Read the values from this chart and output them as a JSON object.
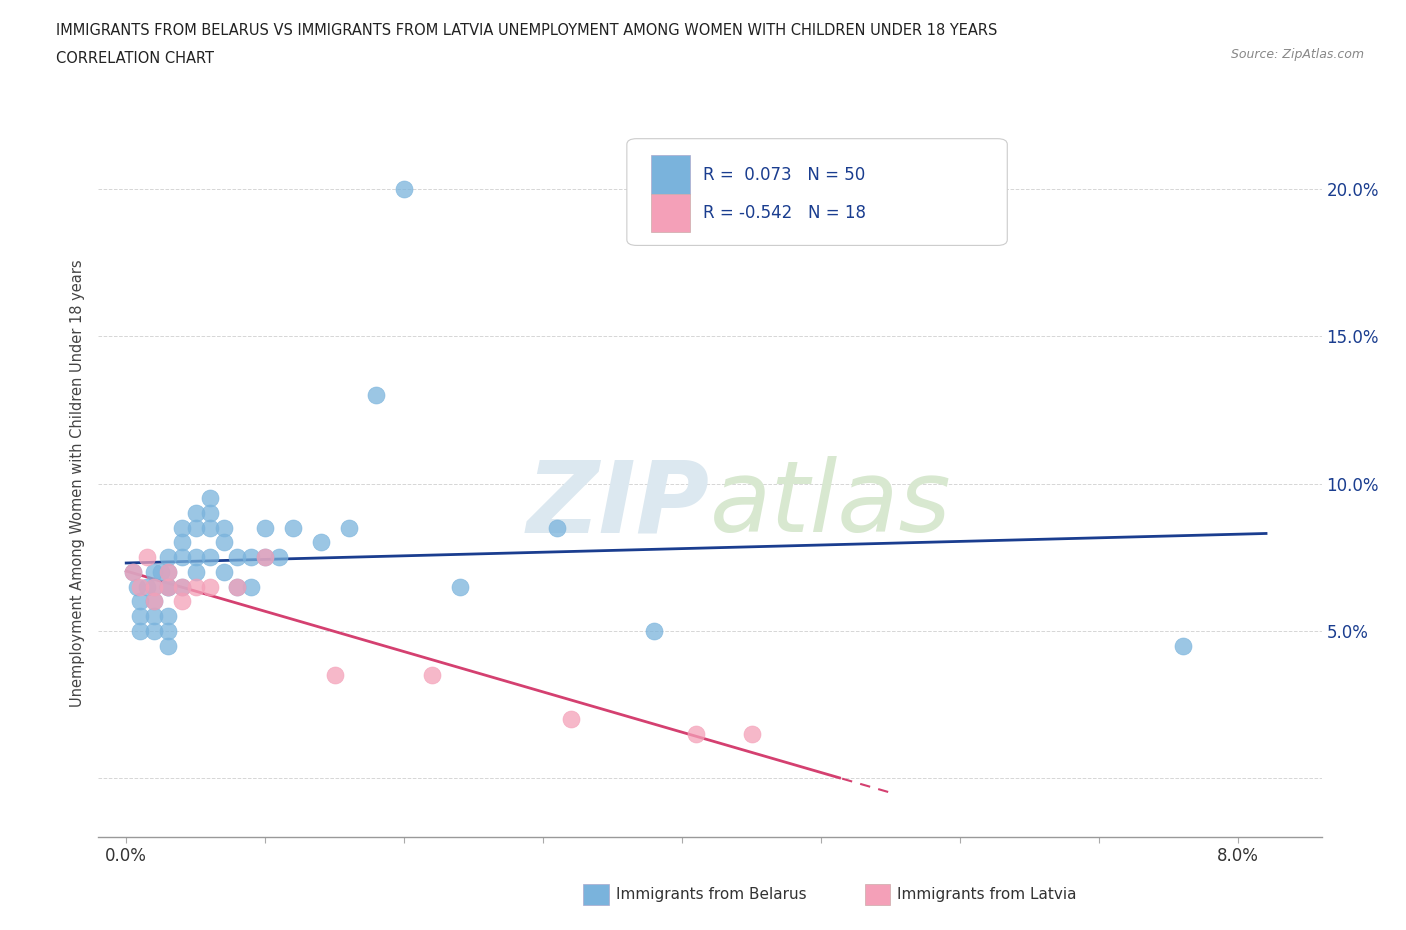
{
  "title_line1": "IMMIGRANTS FROM BELARUS VS IMMIGRANTS FROM LATVIA UNEMPLOYMENT AMONG WOMEN WITH CHILDREN UNDER 18 YEARS",
  "title_line2": "CORRELATION CHART",
  "source": "Source: ZipAtlas.com",
  "bottom_legend_belarus": "Immigrants from Belarus",
  "bottom_legend_latvia": "Immigrants from Latvia",
  "ylabel_label": "Unemployment Among Women with Children Under 18 years",
  "xlim": [
    -0.002,
    0.086
  ],
  "ylim": [
    -0.02,
    0.22
  ],
  "x_ticks": [
    0.0,
    0.01,
    0.02,
    0.03,
    0.04,
    0.05,
    0.06,
    0.07,
    0.08
  ],
  "x_tick_labels": [
    "0.0%",
    "",
    "",
    "",
    "",
    "",
    "",
    "",
    "8.0%"
  ],
  "y_ticks": [
    0.0,
    0.05,
    0.1,
    0.15,
    0.2
  ],
  "y_tick_labels": [
    "",
    "5.0%",
    "10.0%",
    "15.0%",
    "20.0%"
  ],
  "R_belarus": 0.073,
  "N_belarus": 50,
  "R_latvia": -0.542,
  "N_latvia": 18,
  "color_belarus": "#7ab3dc",
  "color_latvia": "#f4a0b8",
  "trend_color_belarus": "#1a3d8f",
  "trend_color_latvia": "#d44070",
  "legend_text_color": "#1a3d8f",
  "grid_color": "#cccccc",
  "belarus_x": [
    0.0005,
    0.0008,
    0.001,
    0.001,
    0.001,
    0.0015,
    0.002,
    0.002,
    0.002,
    0.002,
    0.002,
    0.0025,
    0.003,
    0.003,
    0.003,
    0.003,
    0.003,
    0.003,
    0.003,
    0.004,
    0.004,
    0.004,
    0.004,
    0.005,
    0.005,
    0.005,
    0.005,
    0.006,
    0.006,
    0.006,
    0.006,
    0.007,
    0.007,
    0.007,
    0.008,
    0.008,
    0.009,
    0.009,
    0.01,
    0.01,
    0.011,
    0.012,
    0.014,
    0.016,
    0.018,
    0.02,
    0.024,
    0.031,
    0.038,
    0.076
  ],
  "belarus_y": [
    0.07,
    0.065,
    0.055,
    0.06,
    0.05,
    0.065,
    0.07,
    0.065,
    0.06,
    0.055,
    0.05,
    0.07,
    0.065,
    0.07,
    0.075,
    0.065,
    0.055,
    0.05,
    0.045,
    0.085,
    0.08,
    0.075,
    0.065,
    0.09,
    0.085,
    0.075,
    0.07,
    0.095,
    0.09,
    0.085,
    0.075,
    0.085,
    0.08,
    0.07,
    0.075,
    0.065,
    0.075,
    0.065,
    0.085,
    0.075,
    0.075,
    0.085,
    0.08,
    0.085,
    0.13,
    0.2,
    0.065,
    0.085,
    0.05,
    0.045
  ],
  "latvia_x": [
    0.0005,
    0.001,
    0.0015,
    0.002,
    0.002,
    0.003,
    0.003,
    0.004,
    0.004,
    0.005,
    0.006,
    0.008,
    0.01,
    0.015,
    0.022,
    0.032,
    0.041,
    0.045
  ],
  "latvia_y": [
    0.07,
    0.065,
    0.075,
    0.065,
    0.06,
    0.065,
    0.07,
    0.065,
    0.06,
    0.065,
    0.065,
    0.065,
    0.075,
    0.035,
    0.035,
    0.02,
    0.015,
    0.015
  ]
}
